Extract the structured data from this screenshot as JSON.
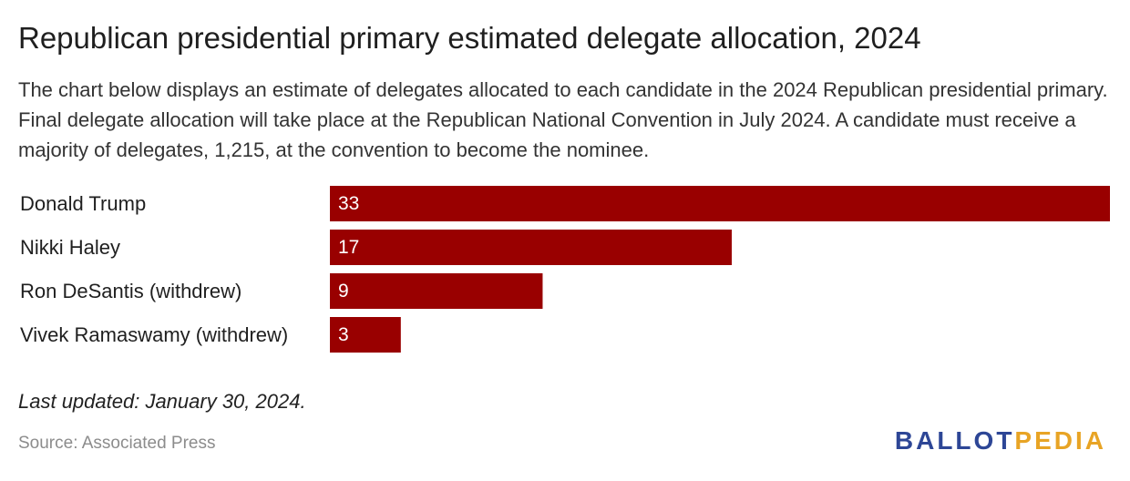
{
  "title": "Republican presidential primary estimated delegate allocation, 2024",
  "subtitle": "The chart below displays an estimate of delegates allocated to each candidate in the 2024 Republican presidential primary. Final delegate allocation will take place at the Republican National Convention in July 2024. A candidate must receive a majority of delegates, 1,215, at the convention to become the nominee.",
  "footer": {
    "last_updated": "Last updated: January 30, 2024.",
    "source": "Source: Associated Press",
    "logo_left": "BALLOT",
    "logo_right": "PEDIA"
  },
  "colors": {
    "bar": "#990000",
    "logo_blue": "#2d4696",
    "logo_gold": "#e8a425"
  },
  "chart_data": {
    "type": "bar",
    "orientation": "horizontal",
    "categories": [
      "Donald Trump",
      "Nikki Haley",
      "Ron DeSantis (withdrew)",
      "Vivek Ramaswamy (withdrew)"
    ],
    "values": [
      33,
      17,
      9,
      3
    ],
    "value_labels": [
      "33",
      "17",
      "9",
      "3"
    ],
    "xlim": [
      0,
      33
    ],
    "grid": false,
    "legend": "none"
  }
}
